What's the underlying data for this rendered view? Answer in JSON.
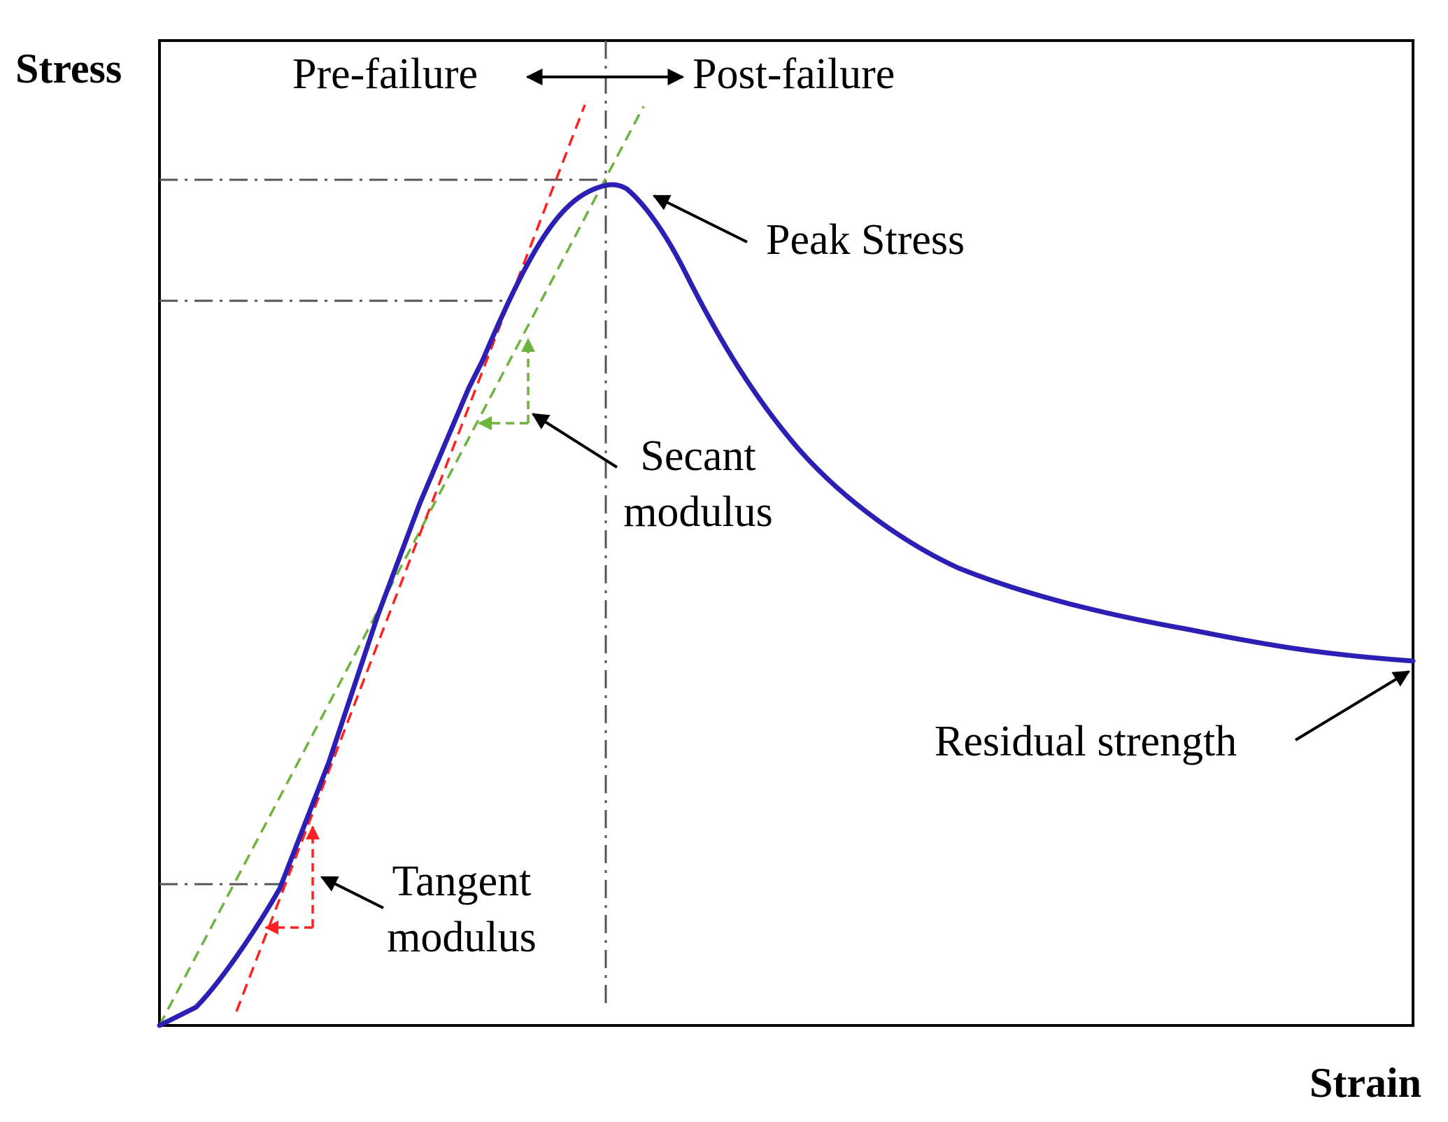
{
  "y_axis_label": "Stress",
  "x_axis_label": "Strain",
  "pre_failure_label": "Pre-failure",
  "post_failure_label": "Post-failure",
  "peak_stress_label": "Peak Stress",
  "secant_modulus_label": [
    "Secant",
    "modulus"
  ],
  "tangent_modulus_label": [
    "Tangent",
    "modulus"
  ],
  "residual_strength_label": "Residual strength",
  "colors": {
    "curve": "#2b1fb4",
    "tangent": "#ff2020",
    "secant": "#6db33f",
    "reference_lines": "#555555",
    "frame": "#000000"
  }
}
